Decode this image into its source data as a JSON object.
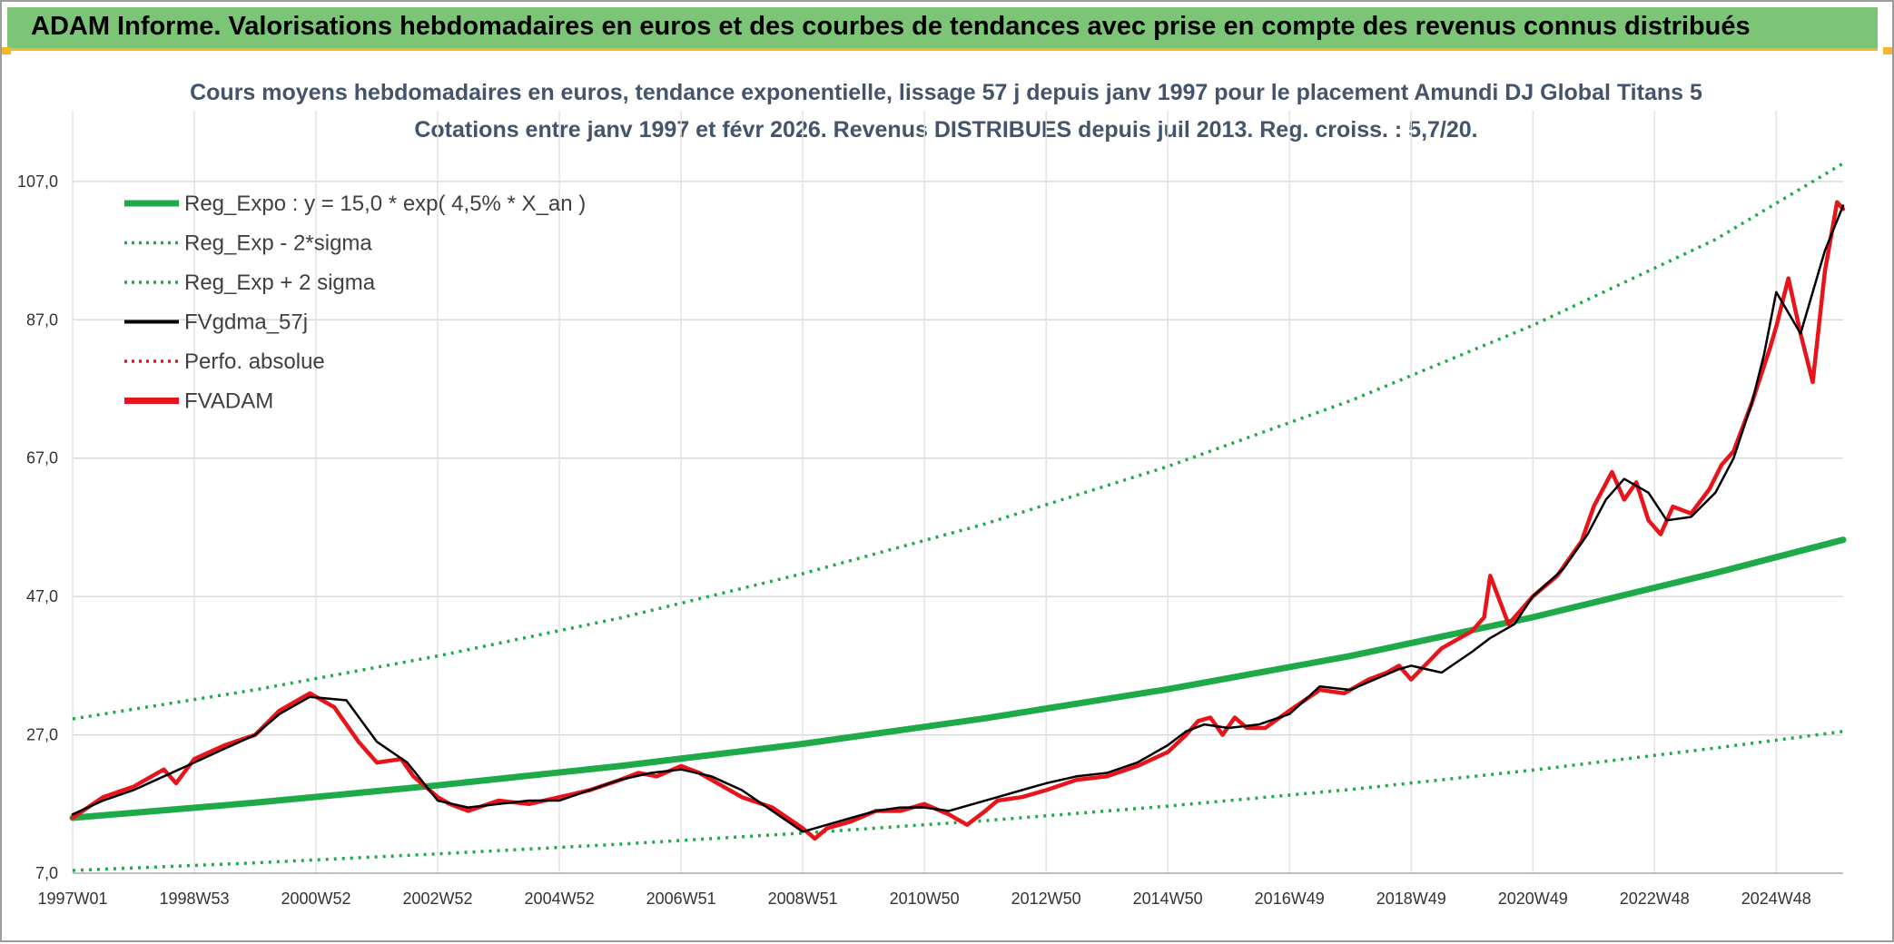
{
  "banner": {
    "title": "ADAM Informe. Valorisations hebdomadaires en euros et des courbes de tendances avec prise en compte des revenus connus distribués"
  },
  "colors": {
    "banner_bg": "#7cc576",
    "regression": "#1faa4a",
    "smoothed": "#000000",
    "price": "#e8141b",
    "title_text": "#44546a"
  },
  "chart_data": {
    "type": "line",
    "title": "Cours moyens hebdomadaires en euros, tendance exponentielle, lissage 57 j depuis janv 1997 pour le placement Amundi DJ Global Titans 5",
    "subtitle": "Cotations entre janv 1997 et févr 2026. Revenus DISTRIBUES depuis juil 2013. Reg. croiss. : 5,7/20.",
    "xlabel": "",
    "ylabel": "",
    "x_range": [
      1997.0,
      2026.1
    ],
    "ylim": [
      7.0,
      110.0
    ],
    "y_ticks": [
      {
        "value": 7.0,
        "label": "7,0"
      },
      {
        "value": 27.0,
        "label": "27,0"
      },
      {
        "value": 47.0,
        "label": "47,0"
      },
      {
        "value": 67.0,
        "label": "67,0"
      },
      {
        "value": 87.0,
        "label": "87,0"
      },
      {
        "value": 107.0,
        "label": "107,0"
      }
    ],
    "x_ticks": [
      {
        "value": 1997.0,
        "label": "1997W01"
      },
      {
        "value": 1999.0,
        "label": "1998W53"
      },
      {
        "value": 2001.0,
        "label": "2000W52"
      },
      {
        "value": 2003.0,
        "label": "2002W52"
      },
      {
        "value": 2005.0,
        "label": "2004W52"
      },
      {
        "value": 2007.0,
        "label": "2006W51"
      },
      {
        "value": 2009.0,
        "label": "2008W51"
      },
      {
        "value": 2011.0,
        "label": "2010W50"
      },
      {
        "value": 2013.0,
        "label": "2012W50"
      },
      {
        "value": 2015.0,
        "label": "2014W50"
      },
      {
        "value": 2017.0,
        "label": "2016W49"
      },
      {
        "value": 2019.0,
        "label": "2018W49"
      },
      {
        "value": 2021.0,
        "label": "2020W49"
      },
      {
        "value": 2023.0,
        "label": "2022W48"
      },
      {
        "value": 2025.0,
        "label": "2024W48"
      }
    ],
    "grid": true,
    "legend_position": "top-left",
    "series": [
      {
        "name": "Reg_Expo : y = 15,0 * exp( 4,5% *  X_an )",
        "style": "solid-thick",
        "color": "#1faa4a",
        "x": [
          1997.0,
          2000.0,
          2003.0,
          2006.0,
          2009.0,
          2012.0,
          2015.0,
          2018.0,
          2021.0,
          2024.0,
          2026.1
        ],
        "values": [
          15.0,
          17.2,
          19.7,
          22.5,
          25.7,
          29.4,
          33.6,
          38.4,
          44.0,
          50.4,
          55.2
        ]
      },
      {
        "name": "Reg_Exp - 2*sigma",
        "style": "dotted",
        "color": "#1faa4a",
        "x": [
          1997.0,
          2000.0,
          2003.0,
          2006.0,
          2009.0,
          2012.0,
          2015.0,
          2018.0,
          2021.0,
          2024.0,
          2026.1
        ],
        "values": [
          7.4,
          8.5,
          9.8,
          11.2,
          12.8,
          14.6,
          16.7,
          19.1,
          21.9,
          25.1,
          27.5
        ]
      },
      {
        "name": "Reg_Exp + 2 sigma",
        "style": "dotted",
        "color": "#1faa4a",
        "x": [
          1997.0,
          2000.0,
          2003.0,
          2006.0,
          2009.0,
          2012.0,
          2015.0,
          2018.0,
          2021.0,
          2024.0,
          2026.1
        ],
        "values": [
          29.3,
          33.5,
          38.4,
          43.9,
          50.3,
          57.5,
          65.8,
          75.3,
          86.2,
          98.6,
          109.6
        ]
      },
      {
        "name": "FVgdma_57j",
        "style": "solid",
        "color": "#000000",
        "x": [
          1997.0,
          1997.5,
          1998.0,
          1998.5,
          1999.0,
          1999.5,
          2000.0,
          2000.4,
          2000.9,
          2001.5,
          2002.0,
          2002.5,
          2003.0,
          2003.5,
          2004.0,
          2004.5,
          2005.0,
          2005.5,
          2006.0,
          2006.5,
          2007.0,
          2007.5,
          2008.0,
          2008.5,
          2009.0,
          2009.4,
          2009.8,
          2010.2,
          2010.6,
          2011.0,
          2011.4,
          2011.8,
          2012.2,
          2012.6,
          2013.0,
          2013.5,
          2014.0,
          2014.5,
          2015.0,
          2015.3,
          2015.6,
          2016.0,
          2016.5,
          2017.0,
          2017.5,
          2018.0,
          2018.4,
          2018.8,
          2019.0,
          2019.5,
          2020.0,
          2020.3,
          2020.7,
          2021.0,
          2021.5,
          2021.9,
          2022.2,
          2022.5,
          2022.9,
          2023.2,
          2023.6,
          2024.0,
          2024.3,
          2024.6,
          2024.8,
          2025.0,
          2025.4,
          2025.8,
          2026.1
        ],
        "values": [
          15.5,
          17.5,
          19.0,
          21.0,
          23.0,
          25.0,
          27.0,
          30.0,
          32.5,
          32.0,
          26.0,
          23.0,
          17.5,
          16.5,
          17.0,
          17.5,
          17.5,
          19.0,
          20.5,
          21.5,
          22.0,
          21.0,
          19.0,
          16.0,
          13.0,
          14.0,
          15.0,
          16.0,
          16.5,
          16.5,
          16.0,
          17.0,
          18.0,
          19.0,
          20.0,
          21.0,
          21.5,
          23.0,
          25.5,
          27.5,
          28.5,
          28.0,
          28.5,
          30.0,
          34.0,
          33.5,
          35.0,
          36.5,
          37.0,
          36.0,
          39.0,
          41.0,
          43.0,
          47.0,
          51.0,
          56.0,
          61.0,
          64.0,
          62.0,
          58.0,
          58.5,
          62.0,
          67.0,
          75.0,
          82.0,
          91.0,
          85.0,
          97.0,
          103.5
        ]
      },
      {
        "name": "Perfo. absolue",
        "style": "dotted",
        "color": "#e8141b",
        "x": [],
        "values": []
      },
      {
        "name": "FVADAM",
        "style": "solid-thick",
        "color": "#e8141b",
        "x": [
          1997.0,
          1997.5,
          1998.0,
          1998.5,
          1998.7,
          1999.0,
          1999.5,
          2000.0,
          2000.4,
          2000.9,
          2001.3,
          2001.7,
          2002.0,
          2002.4,
          2002.6,
          2003.0,
          2003.2,
          2003.5,
          2004.0,
          2004.5,
          2005.0,
          2005.5,
          2006.0,
          2006.3,
          2006.6,
          2007.0,
          2007.3,
          2007.6,
          2008.0,
          2008.5,
          2009.0,
          2009.2,
          2009.4,
          2009.8,
          2010.2,
          2010.6,
          2011.0,
          2011.4,
          2011.7,
          2012.0,
          2012.2,
          2012.6,
          2013.0,
          2013.5,
          2014.0,
          2014.5,
          2015.0,
          2015.3,
          2015.5,
          2015.7,
          2015.9,
          2016.1,
          2016.3,
          2016.6,
          2017.0,
          2017.5,
          2017.9,
          2018.3,
          2018.6,
          2018.8,
          2019.0,
          2019.5,
          2020.0,
          2020.2,
          2020.3,
          2020.6,
          2021.0,
          2021.4,
          2021.8,
          2022.0,
          2022.3,
          2022.5,
          2022.7,
          2022.9,
          2023.1,
          2023.3,
          2023.6,
          2023.9,
          2024.1,
          2024.3,
          2024.6,
          2024.9,
          2025.0,
          2025.2,
          2025.4,
          2025.6,
          2025.8,
          2026.0,
          2026.1
        ],
        "values": [
          15.0,
          18.0,
          19.5,
          22.0,
          20.0,
          23.5,
          25.5,
          27.0,
          30.5,
          33.0,
          31.0,
          26.0,
          23.0,
          23.5,
          21.0,
          18.0,
          17.0,
          16.0,
          17.5,
          17.0,
          18.0,
          19.0,
          20.5,
          21.5,
          21.0,
          22.5,
          21.5,
          20.0,
          18.0,
          16.5,
          13.5,
          12.0,
          13.5,
          14.5,
          16.0,
          16.0,
          17.0,
          15.5,
          14.0,
          16.0,
          17.5,
          18.0,
          19.0,
          20.5,
          21.0,
          22.5,
          24.5,
          27.0,
          29.0,
          29.5,
          27.0,
          29.5,
          28.0,
          28.0,
          30.5,
          33.5,
          33.0,
          35.0,
          36.0,
          37.0,
          35.0,
          39.5,
          42.0,
          44.0,
          50.0,
          43.0,
          47.0,
          50.0,
          55.0,
          60.0,
          65.0,
          61.0,
          63.5,
          58.0,
          56.0,
          60.0,
          59.0,
          62.5,
          66.0,
          68.0,
          75.0,
          83.0,
          86.0,
          93.0,
          85.0,
          78.0,
          94.0,
          104.0,
          103.0
        ]
      }
    ]
  }
}
